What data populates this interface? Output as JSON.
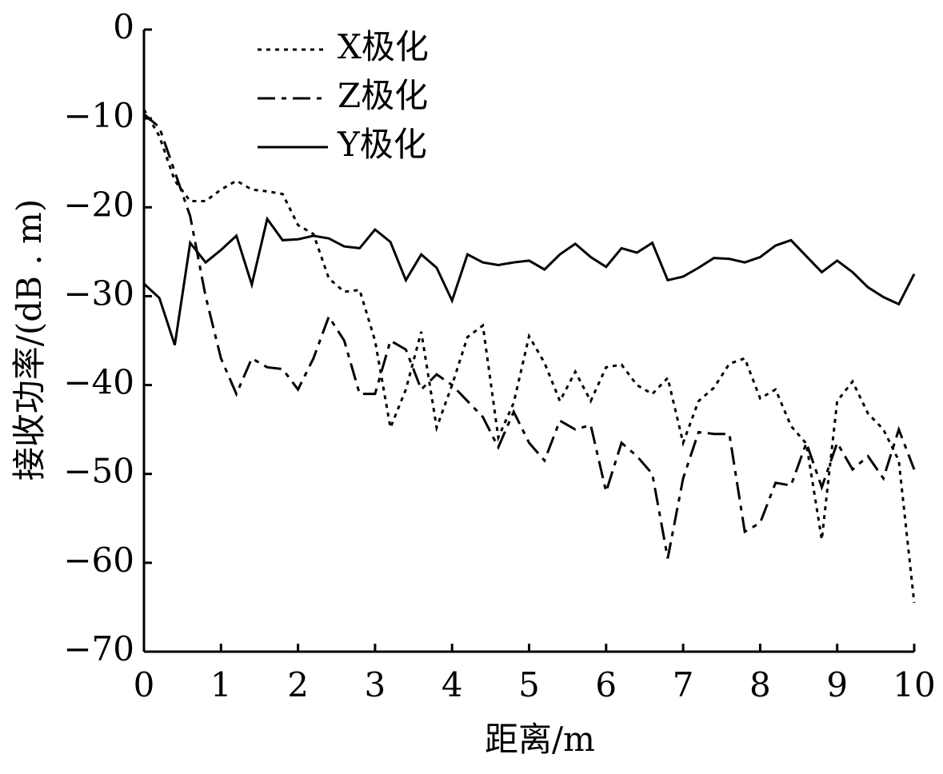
{
  "chart_data": {
    "type": "line",
    "xlabel": "距离/m",
    "ylabel": "接收功率/(dB . m)",
    "x": [
      0,
      0.2,
      0.4,
      0.6,
      0.8,
      1,
      1.2,
      1.4,
      1.6,
      1.8,
      2,
      2.2,
      2.4,
      2.6,
      2.8,
      3,
      3.2,
      3.4,
      3.6,
      3.8,
      4,
      4.2,
      4.4,
      4.6,
      4.8,
      5,
      5.2,
      5.4,
      5.6,
      5.8,
      6,
      6.2,
      6.4,
      6.6,
      6.8,
      7,
      7.2,
      7.4,
      7.6,
      7.8,
      8,
      8.2,
      8.4,
      8.6,
      8.8,
      9,
      9.2,
      9.4,
      9.6,
      9.8,
      10
    ],
    "series": [
      {
        "name": "X极化",
        "color": "#000000",
        "dash": "5 6",
        "values": [
          -9,
          -12,
          -17,
          -19.3,
          -19.3,
          -18,
          -17,
          -18,
          -18.2,
          -18.5,
          -22,
          -23,
          -28,
          -29.5,
          -29.3,
          -35,
          -44.8,
          -40.5,
          -34,
          -44.8,
          -40,
          -34.6,
          -33.3,
          -45.9,
          -42,
          -34.5,
          -37.5,
          -41.8,
          -38.5,
          -41.8,
          -38,
          -37.7,
          -40,
          -41,
          -39.2,
          -46.5,
          -41.8,
          -40.3,
          -37.6,
          -37,
          -41.5,
          -40.5,
          -44.6,
          -46.6,
          -57.4,
          -41.8,
          -39.6,
          -43.2,
          -45,
          -48.5,
          -64.5
        ]
      },
      {
        "name": "Z极化",
        "color": "#000000",
        "dash": "22 8 6 8",
        "values": [
          -9.5,
          -11,
          -16,
          -21,
          -30,
          -37,
          -41,
          -37,
          -38,
          -38.2,
          -40.5,
          -37,
          -32.3,
          -35,
          -41,
          -41,
          -35,
          -36,
          -40.5,
          -38.8,
          -40,
          -41.8,
          -43.6,
          -47,
          -43,
          -46.5,
          -48.5,
          -44,
          -45,
          -44.5,
          -52,
          -46.5,
          -48,
          -50,
          -59.5,
          -50.5,
          -45.3,
          -45.5,
          -45.5,
          -56.5,
          -55.5,
          -51,
          -51.3,
          -46.5,
          -51.5,
          -46.5,
          -49.5,
          -48,
          -50.5,
          -45,
          -49.5
        ]
      },
      {
        "name": "Y极化",
        "color": "#000000",
        "dash": "none",
        "values": [
          -28.6,
          -30.2,
          -35.5,
          -24,
          -26.2,
          -24.8,
          -23.2,
          -28.7,
          -21.3,
          -23.7,
          -23.6,
          -23.2,
          -23.5,
          -24.4,
          -24.6,
          -22.5,
          -23.9,
          -28.2,
          -25.3,
          -26.8,
          -30.5,
          -25.3,
          -26.2,
          -26.5,
          -26.2,
          -26,
          -27,
          -25.3,
          -24.1,
          -25.6,
          -26.7,
          -24.6,
          -25.1,
          -24,
          -28.2,
          -27.8,
          -26.8,
          -25.7,
          -25.8,
          -26.2,
          -25.6,
          -24.3,
          -23.7,
          -25.5,
          -27.3,
          -26,
          -27.3,
          -29,
          -30.1,
          -30.9,
          -27.5
        ]
      }
    ],
    "xlim": [
      0,
      10
    ],
    "xticks": [
      0,
      1,
      2,
      3,
      4,
      5,
      6,
      7,
      8,
      9,
      10
    ],
    "ylim": [
      -70,
      0
    ],
    "yticks": [
      {
        "value": -70,
        "label": "−70"
      },
      {
        "value": -60,
        "label": "−60"
      },
      {
        "value": -50,
        "label": "−50"
      },
      {
        "value": -40,
        "label": "−40"
      },
      {
        "value": -30,
        "label": "−30"
      },
      {
        "value": -20,
        "label": "−20"
      },
      {
        "value": -10,
        "label": "−10"
      },
      0
    ],
    "legend": "upper center",
    "grid": false
  }
}
